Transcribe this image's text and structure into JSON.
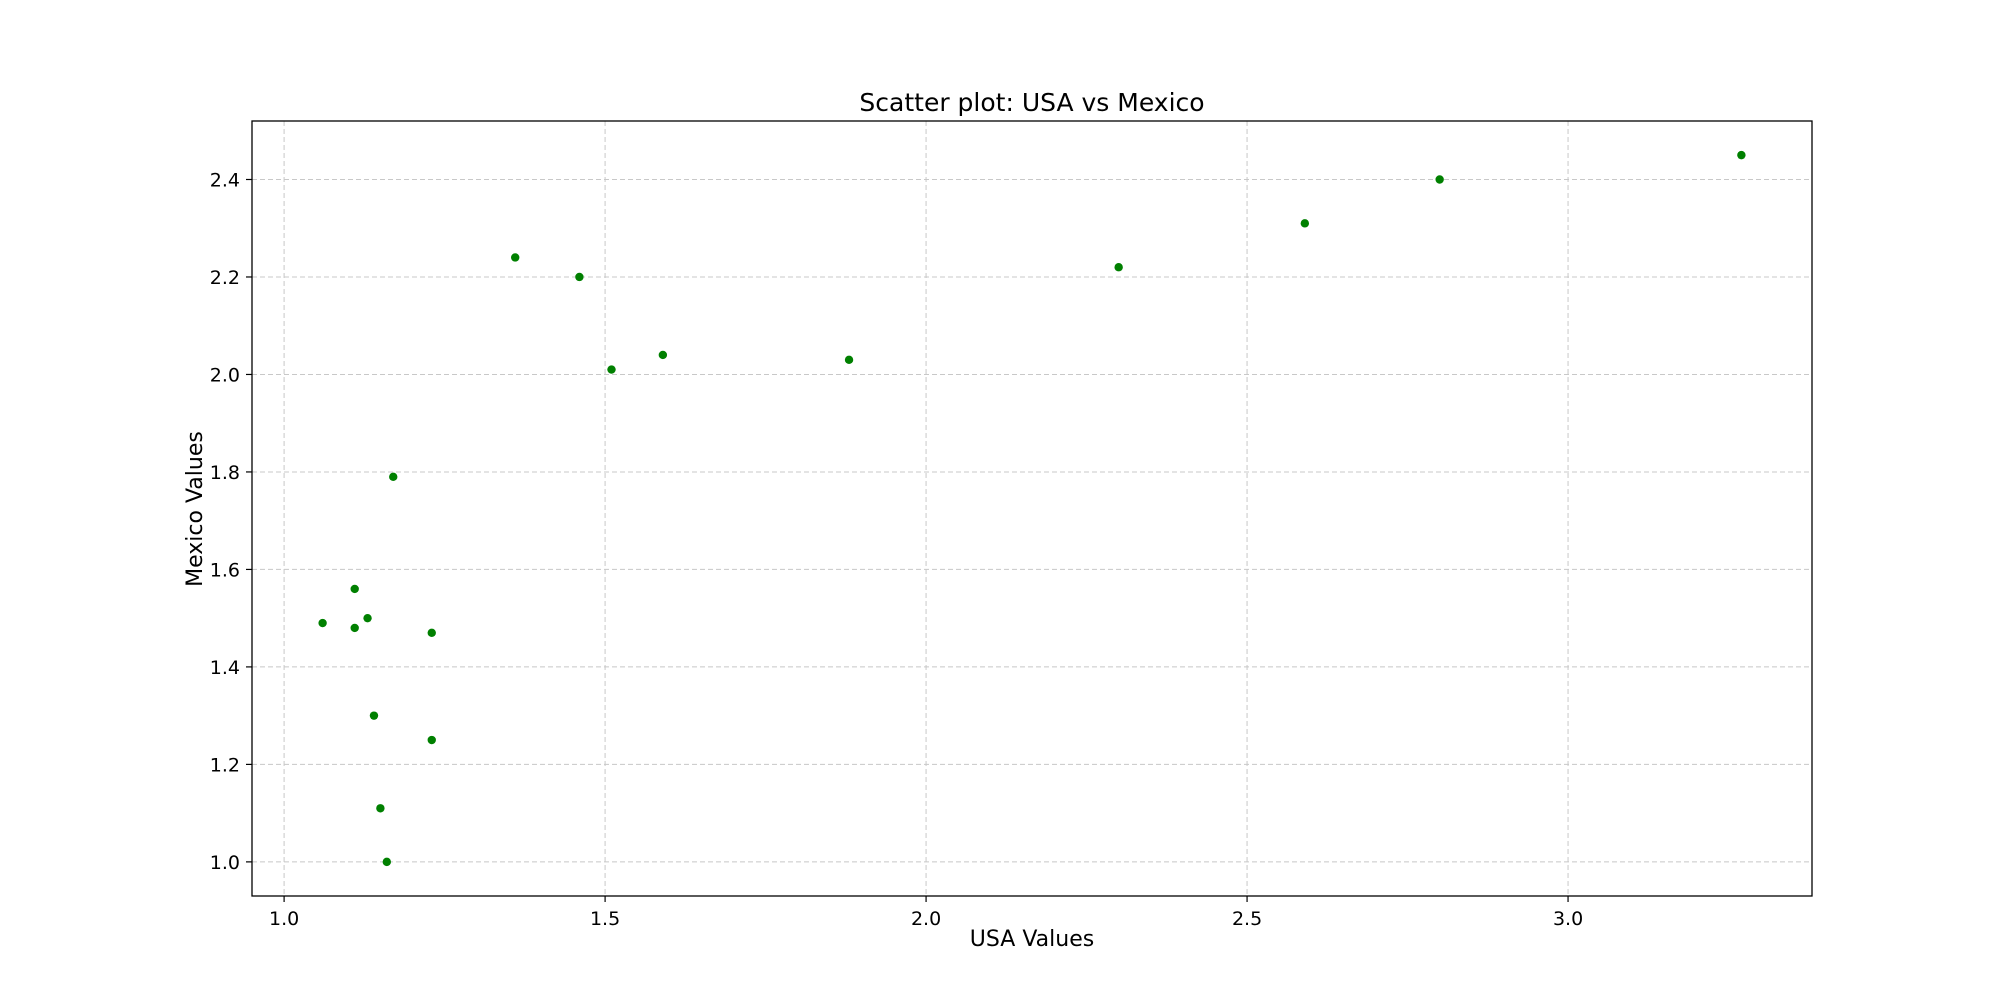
{
  "chart_data": {
    "type": "scatter",
    "title": "Scatter plot: USA vs Mexico",
    "xlabel": "USA Values",
    "ylabel": "Mexico Values",
    "xlim": [
      0.95,
      3.38
    ],
    "ylim": [
      0.93,
      2.52
    ],
    "xticks": [
      1.0,
      1.5,
      2.0,
      2.5,
      3.0
    ],
    "xtick_labels": [
      "1.0",
      "1.5",
      "2.0",
      "2.5",
      "3.0"
    ],
    "yticks": [
      1.0,
      1.2,
      1.4,
      1.6,
      1.8,
      2.0,
      2.2,
      2.4
    ],
    "ytick_labels": [
      "1.0",
      "1.2",
      "1.4",
      "1.6",
      "1.8",
      "2.0",
      "2.2",
      "2.4"
    ],
    "grid": true,
    "marker_color": "#008000",
    "points": [
      {
        "x": 1.06,
        "y": 1.49
      },
      {
        "x": 1.11,
        "y": 1.56
      },
      {
        "x": 1.11,
        "y": 1.48
      },
      {
        "x": 1.13,
        "y": 1.5
      },
      {
        "x": 1.14,
        "y": 1.3
      },
      {
        "x": 1.15,
        "y": 1.11
      },
      {
        "x": 1.16,
        "y": 1.0
      },
      {
        "x": 1.17,
        "y": 1.79
      },
      {
        "x": 1.23,
        "y": 1.47
      },
      {
        "x": 1.23,
        "y": 1.25
      },
      {
        "x": 1.36,
        "y": 2.24
      },
      {
        "x": 1.46,
        "y": 2.2
      },
      {
        "x": 1.51,
        "y": 2.01
      },
      {
        "x": 1.59,
        "y": 2.04
      },
      {
        "x": 1.88,
        "y": 2.03
      },
      {
        "x": 2.3,
        "y": 2.22
      },
      {
        "x": 2.59,
        "y": 2.31
      },
      {
        "x": 2.8,
        "y": 2.4
      },
      {
        "x": 3.27,
        "y": 2.45
      }
    ]
  }
}
